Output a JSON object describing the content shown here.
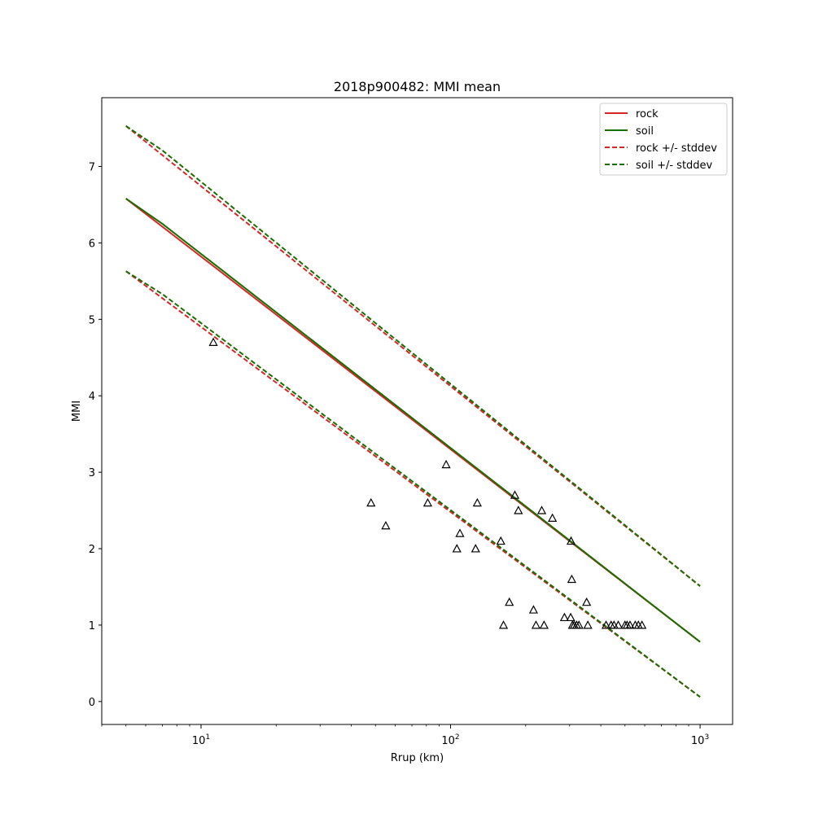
{
  "chart_data": {
    "type": "line",
    "title": "2018p900482: MMI mean",
    "xlabel": "Rrup (km)",
    "ylabel": "MMI",
    "xscale": "log",
    "xlim": [
      4.0,
      1350
    ],
    "ylim": [
      -0.3,
      7.9
    ],
    "xticks_major": [
      10,
      100,
      1000
    ],
    "xtick_labels": [
      {
        "base": "10",
        "exp": "1"
      },
      {
        "base": "10",
        "exp": "2"
      },
      {
        "base": "10",
        "exp": "3"
      }
    ],
    "yticks": [
      0,
      1,
      2,
      3,
      4,
      5,
      6,
      7
    ],
    "ytick_labels": [
      "0",
      "1",
      "2",
      "3",
      "4",
      "5",
      "6",
      "7"
    ],
    "legend_position": "upper right",
    "legend": [
      {
        "label": "rock",
        "color": "#d62728",
        "style": "solid"
      },
      {
        "label": "soil",
        "color": "#1a6e00",
        "style": "solid"
      },
      {
        "label": "rock +/- stddev",
        "color": "#d62728",
        "style": "dashed"
      },
      {
        "label": "soil +/- stddev",
        "color": "#1a6e00",
        "style": "dashed"
      }
    ],
    "series": [
      {
        "name": "rock",
        "color": "#d62728",
        "style": "solid",
        "x": [
          5,
          1000
        ],
        "y": [
          6.58,
          0.78
        ]
      },
      {
        "name": "soil",
        "color": "#1a6e00",
        "style": "solid",
        "x": [
          5,
          7,
          1000
        ],
        "y": [
          6.58,
          6.25,
          0.78
        ]
      },
      {
        "name": "rock +/- stddev",
        "color": "#d62728",
        "style": "dashed",
        "upper": {
          "x": [
            5,
            1000
          ],
          "y": [
            7.53,
            1.51
          ]
        },
        "lower": {
          "x": [
            5,
            1000
          ],
          "y": [
            5.63,
            0.06
          ]
        }
      },
      {
        "name": "soil +/- stddev",
        "color": "#1a6e00",
        "style": "dashed",
        "upper": {
          "x": [
            5,
            7,
            1000
          ],
          "y": [
            7.53,
            7.21,
            1.51
          ]
        },
        "lower": {
          "x": [
            5,
            7,
            1000
          ],
          "y": [
            5.63,
            5.33,
            0.06
          ]
        }
      }
    ],
    "observations": {
      "marker": "triangle",
      "color": "#000000",
      "points": [
        [
          11.2,
          4.7
        ],
        [
          48,
          2.6
        ],
        [
          55,
          2.3
        ],
        [
          81,
          2.6
        ],
        [
          96,
          3.1
        ],
        [
          106,
          2.0
        ],
        [
          109,
          2.2
        ],
        [
          126,
          2.0
        ],
        [
          128,
          2.6
        ],
        [
          159,
          2.1
        ],
        [
          163,
          1.0
        ],
        [
          172,
          1.3
        ],
        [
          181,
          2.7
        ],
        [
          187,
          2.5
        ],
        [
          215,
          1.2
        ],
        [
          220,
          1.0
        ],
        [
          232,
          2.5
        ],
        [
          237,
          1.0
        ],
        [
          256,
          2.4
        ],
        [
          286,
          1.1
        ],
        [
          303,
          1.1
        ],
        [
          304,
          2.1
        ],
        [
          306,
          1.6
        ],
        [
          308,
          1.0
        ],
        [
          313,
          1.0
        ],
        [
          320,
          1.0
        ],
        [
          327,
          1.0
        ],
        [
          351,
          1.3
        ],
        [
          355,
          1.0
        ],
        [
          420,
          1.0
        ],
        [
          440,
          1.0
        ],
        [
          452,
          1.0
        ],
        [
          470,
          1.0
        ],
        [
          500,
          1.0
        ],
        [
          510,
          1.0
        ],
        [
          524,
          1.0
        ],
        [
          550,
          1.0
        ],
        [
          566,
          1.0
        ],
        [
          585,
          1.0
        ]
      ]
    }
  }
}
